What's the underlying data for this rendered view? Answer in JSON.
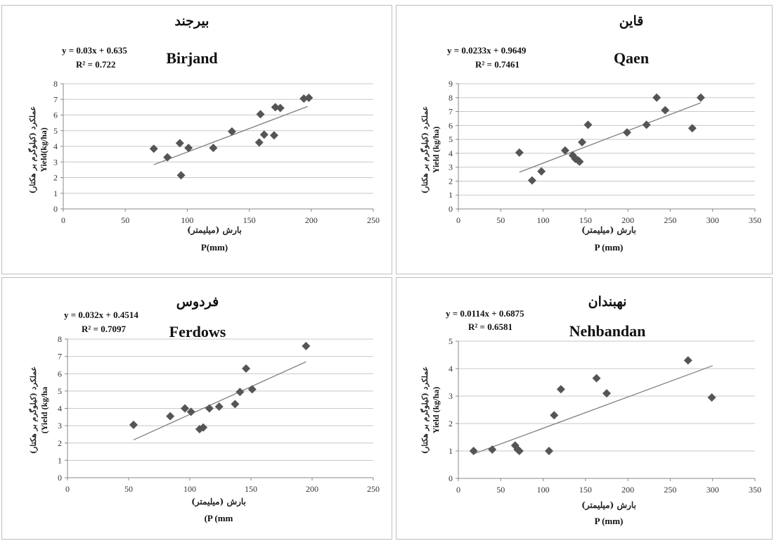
{
  "chart_data": [
    {
      "type": "scatter",
      "title_fa": "بیرجند",
      "title": "Birjand",
      "equation": "y = 0.03x + 0.635",
      "r2": "R² = 0.722",
      "xlabel_fa": "بارش (میلیمتر)",
      "xlabel": "P(mm)",
      "ylabel": "Yield(kg/ha)",
      "ylabel_fa": "عملکرد (کیلوگرم بر هکتار)",
      "xlim": [
        0,
        250
      ],
      "ylim": [
        0,
        8
      ],
      "xticks": [
        0,
        50,
        100,
        150,
        200,
        250
      ],
      "yticks": [
        0,
        1,
        2,
        3,
        4,
        5,
        6,
        7,
        8
      ],
      "grid": true,
      "trendline": {
        "slope": 0.03,
        "intercept": 0.635,
        "x_range": [
          73,
          197
        ]
      },
      "points": [
        [
          73,
          3.85
        ],
        [
          84,
          3.3
        ],
        [
          94,
          4.2
        ],
        [
          95,
          2.15
        ],
        [
          101,
          3.9
        ],
        [
          121,
          3.9
        ],
        [
          136,
          4.95
        ],
        [
          158,
          4.25
        ],
        [
          159,
          6.05
        ],
        [
          162,
          4.75
        ],
        [
          170,
          4.7
        ],
        [
          171,
          6.5
        ],
        [
          175,
          6.45
        ],
        [
          194,
          7.05
        ],
        [
          198,
          7.1
        ]
      ]
    },
    {
      "type": "scatter",
      "title_fa": "قاین",
      "title": "Qaen",
      "equation": "y = 0.0233x + 0.9649",
      "r2": "R² = 0.7461",
      "xlabel_fa": "بارش (میلیمتر)",
      "xlabel": "P (mm)",
      "ylabel": "Yield (kg/ha)",
      "ylabel_fa": "عملکرد (کیلوگرم بر هکتار)",
      "xlim": [
        0,
        350
      ],
      "ylim": [
        0,
        9
      ],
      "xticks": [
        0,
        50,
        100,
        150,
        200,
        250,
        300,
        350
      ],
      "yticks": [
        0,
        1,
        2,
        3,
        4,
        5,
        6,
        7,
        8,
        9
      ],
      "grid": true,
      "trendline": {
        "slope": 0.0233,
        "intercept": 0.9649,
        "x_range": [
          72,
          286
        ]
      },
      "points": [
        [
          72,
          4.05
        ],
        [
          87,
          2.05
        ],
        [
          98,
          2.7
        ],
        [
          126,
          4.2
        ],
        [
          135,
          3.85
        ],
        [
          138,
          3.6
        ],
        [
          141,
          3.5
        ],
        [
          143,
          3.4
        ],
        [
          146,
          4.8
        ],
        [
          153,
          6.05
        ],
        [
          199,
          5.5
        ],
        [
          222,
          6.05
        ],
        [
          234,
          8.0
        ],
        [
          244,
          7.1
        ],
        [
          276,
          5.8
        ],
        [
          286,
          8.0
        ]
      ]
    },
    {
      "type": "scatter",
      "title_fa": "فردوس",
      "title": "Ferdows",
      "equation": "y = 0.032x + 0.4514",
      "r2": "R² = 0.7097",
      "xlabel_fa": "بارش (میلیمتر)",
      "xlabel": "(P (mm",
      "ylabel": "(Yield (kg/ha",
      "ylabel_fa": "عملکرد (کیلوگرم بر هکتار)",
      "xlim": [
        0,
        250
      ],
      "ylim": [
        0,
        8
      ],
      "xticks": [
        0,
        50,
        100,
        150,
        200,
        250
      ],
      "yticks": [
        0,
        1,
        2,
        3,
        4,
        5,
        6,
        7,
        8
      ],
      "grid": true,
      "trendline": {
        "slope": 0.032,
        "intercept": 0.4514,
        "x_range": [
          54,
          195
        ]
      },
      "points": [
        [
          54,
          3.05
        ],
        [
          84,
          3.55
        ],
        [
          96,
          4.0
        ],
        [
          101,
          3.8
        ],
        [
          108,
          2.8
        ],
        [
          111,
          2.9
        ],
        [
          116,
          4.0
        ],
        [
          124,
          4.1
        ],
        [
          137,
          4.25
        ],
        [
          141,
          4.95
        ],
        [
          146,
          6.3
        ],
        [
          151,
          5.1
        ],
        [
          195,
          7.6
        ]
      ]
    },
    {
      "type": "scatter",
      "title_fa": "نهبندان",
      "title": "Nehbandan",
      "equation": "y = 0.0114x + 0.6875",
      "r2": "R² = 0.6581",
      "xlabel_fa": "بارش (میلیمتر)",
      "xlabel": "P (mm)",
      "ylabel": "Yield (kg/ha)",
      "ylabel_fa": "عملکرد (کیلوگرم بر هکتار)",
      "xlim": [
        0,
        350
      ],
      "ylim": [
        0,
        5
      ],
      "xticks": [
        0,
        50,
        100,
        150,
        200,
        250,
        300,
        350
      ],
      "yticks": [
        0,
        1,
        2,
        3,
        4,
        5
      ],
      "grid": true,
      "trendline": {
        "slope": 0.0114,
        "intercept": 0.6875,
        "x_range": [
          18,
          300
        ]
      },
      "points": [
        [
          18,
          1.0
        ],
        [
          40,
          1.05
        ],
        [
          67,
          1.2
        ],
        [
          70,
          1.05
        ],
        [
          72,
          1.0
        ],
        [
          107,
          1.0
        ],
        [
          113,
          2.3
        ],
        [
          121,
          3.25
        ],
        [
          163,
          3.65
        ],
        [
          175,
          3.1
        ],
        [
          271,
          4.3
        ],
        [
          299,
          2.95
        ]
      ]
    }
  ],
  "style": {
    "marker_color": "#555555",
    "grid_color": "#c8c8c8",
    "trend_color": "#808080",
    "border_color": "#bfbfbf"
  }
}
